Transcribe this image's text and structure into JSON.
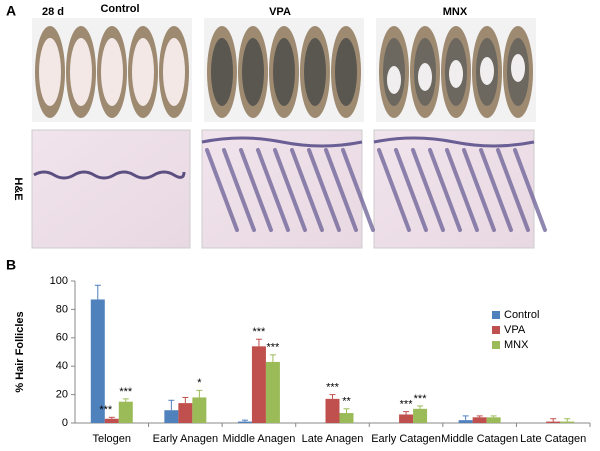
{
  "panel_a": {
    "label": "A",
    "day_label": "28  d",
    "groups": [
      "Control",
      "VPA",
      "MNX"
    ],
    "stain_label": "H&E"
  },
  "chart_data": {
    "type": "bar",
    "panel_label": "B",
    "y_label": "% Hair Follicles",
    "categories": [
      "Telogen",
      "Early Anagen",
      "Middle Anagen",
      "Late Anagen",
      "Early Catagen",
      "Middle Catagen",
      "Late Catagen"
    ],
    "series": [
      {
        "name": "Control",
        "color": "#4f81bd",
        "values": [
          87,
          9,
          1,
          0,
          0,
          2,
          0
        ],
        "errors": [
          10,
          7,
          1,
          0,
          0,
          3,
          0
        ],
        "annotations": [
          null,
          null,
          null,
          null,
          null,
          null,
          null
        ]
      },
      {
        "name": "VPA",
        "color": "#c0504d",
        "values": [
          3,
          14,
          54,
          17,
          6,
          4,
          1
        ],
        "errors": [
          1,
          4,
          5,
          3,
          2,
          1,
          2
        ],
        "annotations": [
          "***",
          null,
          "***",
          "***",
          "***",
          null,
          null
        ]
      },
      {
        "name": "MNX",
        "color": "#9bbb59",
        "values": [
          15,
          18,
          43,
          7,
          10,
          4,
          1
        ],
        "errors": [
          2,
          5,
          5,
          3,
          2,
          1,
          2
        ],
        "annotations": [
          "***",
          "*",
          "***",
          "**",
          "***",
          null,
          null
        ]
      }
    ],
    "ylim": [
      0,
      100
    ],
    "yticks": [
      0,
      20,
      40,
      60,
      80,
      100
    ],
    "legend": "right"
  }
}
